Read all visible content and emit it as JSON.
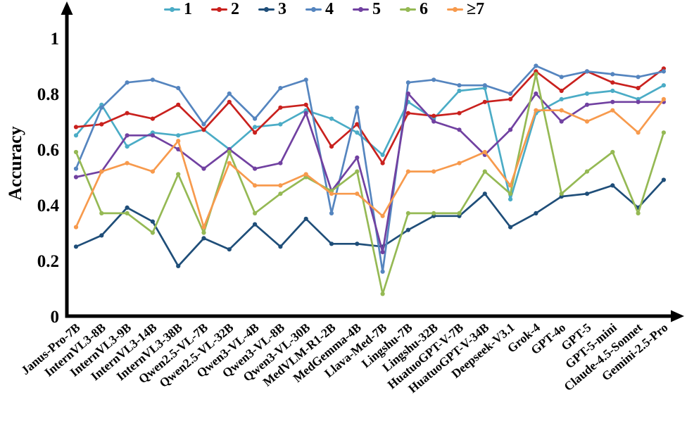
{
  "chart_data": {
    "type": "line",
    "title": "",
    "xlabel": "",
    "ylabel": "Accuracy",
    "ylim": [
      0,
      1.05
    ],
    "grid": false,
    "legend_position": "top-center",
    "yticks": [
      0,
      0.2,
      0.4,
      0.6,
      0.8,
      1
    ],
    "ytick_labels": [
      "0",
      "0.2",
      "0.4",
      "0.6",
      "0.8",
      "1"
    ],
    "categories": [
      "Janus-Pro-7B",
      "InternVL3-8B",
      "InternVL3-9B",
      "InternVL3-14B",
      "InternVL3-38B",
      "Qwen2.5-VL-7B",
      "Qwen2.5-VL-32B",
      "Qwen3-VL-4B",
      "Qwen3-VL-8B",
      "Qwen3-VL-30B",
      "MedVLM-R1-2B",
      "MedGemma-4B",
      "Llava-Med-7B",
      "Lingshu-7B",
      "Lingshu-32B",
      "HuatuoGPT-V-7B",
      "HuatuoGPT-V-34B",
      "Deepseek-V3.1",
      "Grok-4",
      "GPT-4o",
      "GPT-5",
      "GPT-5-mini",
      "Claude-4.5-Sonnet",
      "Gemini-2.5-Pro"
    ],
    "series": [
      {
        "name": "1",
        "color": "#4bacc6",
        "values": [
          0.65,
          0.76,
          0.61,
          0.66,
          0.65,
          0.67,
          0.6,
          0.68,
          0.69,
          0.74,
          0.71,
          0.66,
          0.58,
          0.77,
          0.71,
          0.81,
          0.82,
          0.42,
          0.73,
          0.78,
          0.8,
          0.81,
          0.78,
          0.83
        ]
      },
      {
        "name": "2",
        "color": "#c9211e",
        "values": [
          0.68,
          0.69,
          0.73,
          0.71,
          0.76,
          0.67,
          0.77,
          0.66,
          0.75,
          0.76,
          0.61,
          0.69,
          0.55,
          0.73,
          0.72,
          0.73,
          0.77,
          0.78,
          0.88,
          0.81,
          0.88,
          0.84,
          0.82,
          0.89
        ]
      },
      {
        "name": "3",
        "color": "#1f4e79",
        "values": [
          0.25,
          0.29,
          0.39,
          0.34,
          0.18,
          0.28,
          0.24,
          0.33,
          0.25,
          0.35,
          0.26,
          0.26,
          0.25,
          0.31,
          0.36,
          0.36,
          0.44,
          0.32,
          0.37,
          0.43,
          0.44,
          0.47,
          0.39,
          0.49
        ]
      },
      {
        "name": "4",
        "color": "#5585bf",
        "values": [
          0.53,
          0.75,
          0.84,
          0.85,
          0.82,
          0.69,
          0.8,
          0.71,
          0.82,
          0.85,
          0.37,
          0.75,
          0.16,
          0.84,
          0.85,
          0.83,
          0.83,
          0.8,
          0.9,
          0.86,
          0.88,
          0.87,
          0.86,
          0.88
        ]
      },
      {
        "name": "5",
        "color": "#7141a1",
        "values": [
          0.5,
          0.52,
          0.65,
          0.65,
          0.6,
          0.53,
          0.6,
          0.53,
          0.55,
          0.73,
          0.45,
          0.57,
          0.23,
          0.8,
          0.7,
          0.67,
          0.58,
          0.67,
          0.8,
          0.7,
          0.76,
          0.77,
          0.77,
          0.77
        ]
      },
      {
        "name": "6",
        "color": "#95b954",
        "values": [
          0.59,
          0.37,
          0.37,
          0.3,
          0.51,
          0.3,
          0.59,
          0.37,
          0.44,
          0.5,
          0.45,
          0.52,
          0.08,
          0.37,
          0.37,
          0.37,
          0.52,
          0.44,
          0.87,
          0.44,
          0.52,
          0.59,
          0.37,
          0.66
        ]
      },
      {
        "name": "≥7",
        "color": "#f79a4d",
        "values": [
          0.32,
          0.52,
          0.55,
          0.52,
          0.63,
          0.32,
          0.55,
          0.47,
          0.47,
          0.51,
          0.44,
          0.44,
          0.36,
          0.52,
          0.52,
          0.55,
          0.59,
          0.47,
          0.74,
          0.74,
          0.7,
          0.74,
          0.66,
          0.78
        ]
      }
    ]
  }
}
